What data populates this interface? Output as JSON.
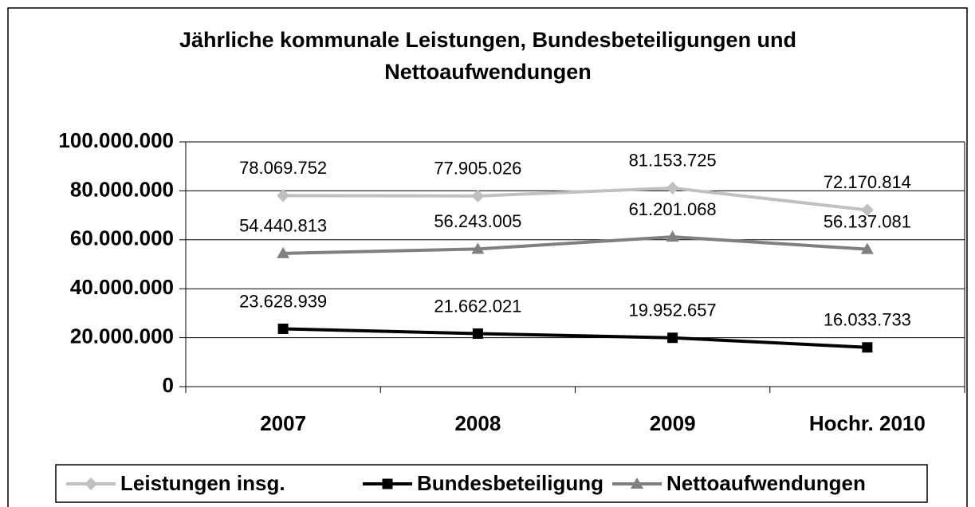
{
  "chart_data": {
    "type": "line",
    "title": [
      "Jährliche  kommunale Leistungen, Bundesbeteiligungen und",
      "Nettoaufwendungen"
    ],
    "categories": [
      "2007",
      "2008",
      "2009",
      "Hochr. 2010"
    ],
    "series": [
      {
        "name": "Leistungen insg.",
        "color": "#c0c0c0",
        "marker": "diamond",
        "values": [
          78069752,
          77905026,
          81153725,
          72170814
        ],
        "value_labels": [
          "78.069.752",
          "77.905.026",
          "81.153.725",
          "72.170.814"
        ]
      },
      {
        "name": "Bundesbeteiligung",
        "color": "#000000",
        "marker": "square",
        "values": [
          23628939,
          21662021,
          19952657,
          16033733
        ],
        "value_labels": [
          "23.628.939",
          "21.662.021",
          "19.952.657",
          "16.033.733"
        ]
      },
      {
        "name": "Nettoaufwendungen",
        "color": "#808080",
        "marker": "triangle",
        "values": [
          54440813,
          56243005,
          61201068,
          56137081
        ],
        "value_labels": [
          "54.440.813",
          "56.243.005",
          "61.201.068",
          "56.137.081"
        ]
      }
    ],
    "ylim": [
      0,
      100000000
    ],
    "yticks": [
      0,
      {
        "value": 20000000,
        "label": "20.000.000"
      },
      {
        "value": 40000000,
        "label": "40.000.000"
      },
      {
        "value": 60000000,
        "label": "60.000.000"
      },
      {
        "value": 80000000,
        "label": "80.000.000"
      },
      {
        "value": 100000000,
        "label": "100.000.000"
      }
    ],
    "grid": true,
    "legend": "bottom"
  }
}
